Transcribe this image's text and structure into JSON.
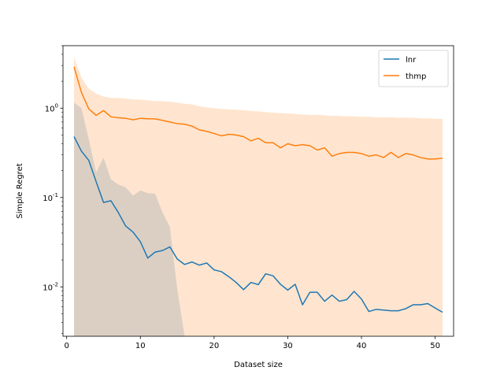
{
  "chart_data": {
    "type": "line",
    "title": "",
    "xlabel": "Dataset size",
    "ylabel": "Simple Regret",
    "yscale": "log",
    "xlim": [
      -0.5,
      52.5
    ],
    "ylim": [
      0.0028,
      5.0
    ],
    "x_ticks": [
      0,
      10,
      20,
      30,
      40,
      50
    ],
    "x_tick_labels": [
      "0",
      "10",
      "20",
      "30",
      "40",
      "50"
    ],
    "y_ticks": [
      0.01,
      0.1,
      1
    ],
    "y_tick_labels": [
      "10^-2",
      "10^-1",
      "10^0"
    ],
    "grid": false,
    "legend_position": "top-right",
    "x": [
      1,
      2,
      3,
      4,
      5,
      6,
      7,
      8,
      9,
      10,
      11,
      12,
      13,
      14,
      15,
      16,
      17,
      18,
      19,
      20,
      21,
      22,
      23,
      24,
      25,
      26,
      27,
      28,
      29,
      30,
      31,
      32,
      33,
      34,
      35,
      36,
      37,
      38,
      39,
      40,
      41,
      42,
      43,
      44,
      45,
      46,
      47,
      48,
      49,
      50,
      51
    ],
    "series": [
      {
        "name": "lnr",
        "color": "#1f77b4",
        "band_color": "#1f77b4",
        "values": [
          0.48,
          0.33,
          0.26,
          0.15,
          0.088,
          0.092,
          0.068,
          0.048,
          0.041,
          0.032,
          0.021,
          0.0245,
          0.0255,
          0.028,
          0.0205,
          0.0178,
          0.019,
          0.0175,
          0.0185,
          0.0155,
          0.0148,
          0.013,
          0.0112,
          0.0093,
          0.0112,
          0.0106,
          0.014,
          0.0133,
          0.0107,
          0.0092,
          0.0107,
          0.0063,
          0.0087,
          0.0087,
          0.0069,
          0.0081,
          0.0069,
          0.0072,
          0.0089,
          0.0073,
          0.0053,
          0.0056,
          0.0055,
          0.0054,
          0.0054,
          0.0057,
          0.0063,
          0.0063,
          0.0065,
          0.0058,
          0.0052
        ],
        "upper": [
          1.15,
          1.0,
          0.45,
          0.19,
          0.28,
          0.16,
          0.14,
          0.13,
          0.105,
          0.12,
          0.112,
          0.11,
          0.068,
          0.047,
          0.0095,
          0.0028,
          0.0028,
          0.0028,
          0.0028,
          0.0028,
          0.0028,
          0.0028,
          0.0028,
          0.0028,
          0.0028,
          0.0028,
          0.0028,
          0.0028,
          0.0028,
          0.0028,
          0.0028,
          0.0028,
          0.0028,
          0.0028,
          0.0028,
          0.0028,
          0.0028,
          0.0028,
          0.0028,
          0.0028,
          0.0028,
          0.0028,
          0.0028,
          0.0028,
          0.0028,
          0.0028,
          0.0028,
          0.0028,
          0.0028,
          0.0028,
          0.0028
        ],
        "lower": [
          0.0028,
          0.0028,
          0.0028,
          0.0028,
          0.0028,
          0.0028,
          0.0028,
          0.0028,
          0.0028,
          0.0028,
          0.0028,
          0.0028,
          0.0028,
          0.0028,
          0.0028,
          0.0028,
          0.0028,
          0.0028,
          0.0028,
          0.0028,
          0.0028,
          0.0028,
          0.0028,
          0.0028,
          0.0028,
          0.0028,
          0.0028,
          0.0028,
          0.0028,
          0.0028,
          0.0028,
          0.0028,
          0.0028,
          0.0028,
          0.0028,
          0.0028,
          0.0028,
          0.0028,
          0.0028,
          0.0028,
          0.0028,
          0.0028,
          0.0028,
          0.0028,
          0.0028,
          0.0028,
          0.0028,
          0.0028,
          0.0028,
          0.0028,
          0.0028
        ]
      },
      {
        "name": "thmp",
        "color": "#ff7f0e",
        "band_color": "#ff7f0e",
        "values": [
          2.9,
          1.5,
          0.98,
          0.83,
          0.94,
          0.8,
          0.78,
          0.77,
          0.74,
          0.77,
          0.76,
          0.76,
          0.73,
          0.7,
          0.67,
          0.66,
          0.63,
          0.57,
          0.55,
          0.52,
          0.49,
          0.51,
          0.5,
          0.48,
          0.43,
          0.46,
          0.41,
          0.41,
          0.36,
          0.4,
          0.38,
          0.39,
          0.38,
          0.34,
          0.36,
          0.29,
          0.31,
          0.32,
          0.32,
          0.31,
          0.29,
          0.3,
          0.28,
          0.32,
          0.28,
          0.31,
          0.3,
          0.28,
          0.27,
          0.27,
          0.275
        ],
        "upper": [
          3.7,
          2.2,
          1.65,
          1.45,
          1.35,
          1.3,
          1.3,
          1.28,
          1.25,
          1.25,
          1.22,
          1.2,
          1.2,
          1.18,
          1.15,
          1.12,
          1.1,
          1.05,
          1.02,
          1.0,
          0.98,
          0.97,
          0.96,
          0.95,
          0.93,
          0.92,
          0.9,
          0.89,
          0.88,
          0.87,
          0.86,
          0.85,
          0.84,
          0.84,
          0.83,
          0.82,
          0.82,
          0.81,
          0.81,
          0.8,
          0.8,
          0.79,
          0.79,
          0.79,
          0.78,
          0.78,
          0.78,
          0.77,
          0.77,
          0.76,
          0.76
        ],
        "lower": [
          1.2,
          0.68,
          0.68,
          0.68,
          0.68,
          0.68,
          0.68,
          0.68,
          0.68,
          0.68,
          0.68,
          0.68,
          0.68,
          0.68,
          0.68,
          0.68,
          0.68,
          0.68,
          0.68,
          0.68,
          0.68,
          0.68,
          0.68,
          0.68,
          0.68,
          0.68,
          0.68,
          0.68,
          0.68,
          0.68,
          0.68,
          0.68,
          0.68,
          0.68,
          0.68,
          0.68,
          0.68,
          0.68,
          0.68,
          0.68,
          0.68,
          0.68,
          0.68,
          0.68,
          0.68,
          0.68,
          0.68,
          0.68,
          0.68,
          0.68,
          0.68
        ],
        "band2_lower": [
          0.0028,
          0.0028,
          0.0028,
          0.0028,
          0.0028,
          0.0028,
          0.0028,
          0.0028,
          0.0028,
          0.0028,
          0.0028,
          0.0028,
          0.0028,
          0.0028,
          0.0028,
          0.0028,
          0.0028,
          0.0028,
          0.0028,
          0.0028,
          0.0028,
          0.0028,
          0.0028,
          0.0028,
          0.0028,
          0.0028,
          0.0028,
          0.0028,
          0.0028,
          0.0028,
          0.0028,
          0.0028,
          0.0028,
          0.0028,
          0.0028,
          0.0028,
          0.0028,
          0.0028,
          0.0028,
          0.0028,
          0.0028,
          0.0028,
          0.0028,
          0.0028,
          0.0028,
          0.0028,
          0.0028,
          0.0028,
          0.0028,
          0.0028,
          0.0028
        ]
      }
    ]
  }
}
